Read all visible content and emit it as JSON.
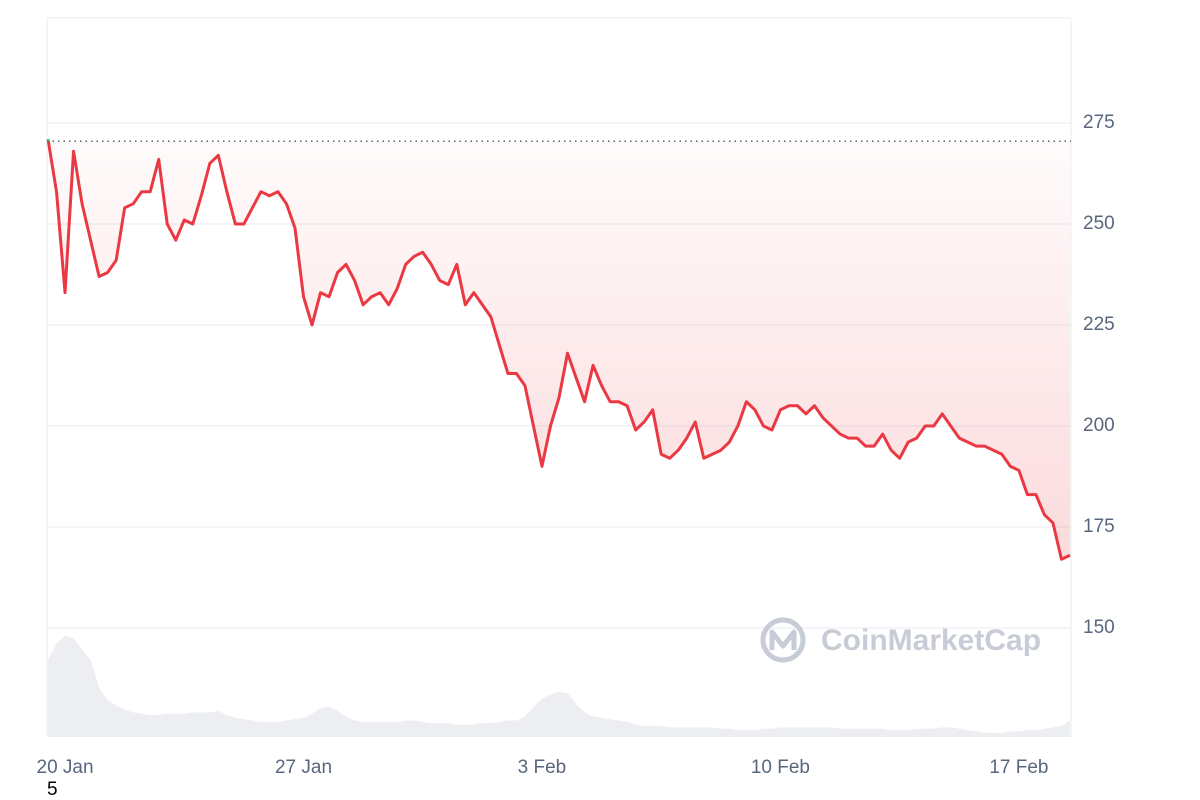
{
  "chart_data": {
    "type": "line",
    "categories": [
      null,
      null,
      "20 Jan",
      null,
      null,
      null,
      null,
      null,
      null,
      null,
      null,
      null,
      null,
      null,
      null,
      null,
      null,
      null,
      null,
      null,
      null,
      null,
      null,
      null,
      null,
      null,
      null,
      null,
      null,
      null,
      "27 Jan",
      null,
      null,
      null,
      null,
      null,
      null,
      null,
      null,
      null,
      null,
      null,
      null,
      null,
      null,
      null,
      null,
      null,
      null,
      null,
      null,
      null,
      null,
      null,
      null,
      null,
      null,
      null,
      "3 Feb",
      null,
      null,
      null,
      null,
      null,
      null,
      null,
      null,
      null,
      null,
      null,
      null,
      null,
      null,
      null,
      null,
      null,
      null,
      null,
      null,
      null,
      null,
      null,
      null,
      null,
      null,
      null,
      "10 Feb",
      null,
      null,
      null,
      null,
      null,
      null,
      null,
      null,
      null,
      null,
      null,
      null,
      null,
      null,
      null,
      null,
      null,
      null,
      null,
      null,
      null,
      null,
      null,
      null,
      null,
      null,
      null,
      "17 Feb",
      null,
      null,
      null,
      null,
      null,
      null
    ],
    "values": [
      271,
      258,
      233,
      268,
      255,
      246,
      237,
      238,
      241,
      254,
      255,
      258,
      258,
      266,
      250,
      246,
      251,
      250,
      257,
      265,
      267,
      258,
      250,
      250,
      254,
      258,
      257,
      258,
      255,
      249,
      232,
      225,
      233,
      232,
      238,
      240,
      236,
      230,
      232,
      233,
      230,
      234,
      240,
      242,
      243,
      240,
      236,
      235,
      240,
      230,
      233,
      230,
      227,
      220,
      213,
      213,
      210,
      200,
      190,
      200,
      207,
      218,
      212,
      206,
      215,
      210,
      206,
      206,
      205,
      199,
      201,
      204,
      193,
      192,
      194,
      197,
      201,
      192,
      193,
      194,
      196,
      200,
      206,
      204,
      200,
      199,
      204,
      205,
      205,
      203,
      205,
      202,
      200,
      198,
      197,
      197,
      195,
      195,
      198,
      194,
      192,
      196,
      197,
      200,
      200,
      203,
      200,
      197,
      196,
      195,
      195,
      194,
      193,
      190,
      189,
      183,
      183,
      178,
      176,
      167,
      168
    ],
    "color": "#ea3943",
    "up_color": "#16c784",
    "reference_line": 270.5,
    "ylim": [
      123,
      301
    ],
    "yticks": [
      150,
      175,
      200,
      225,
      250,
      275
    ],
    "grid": true,
    "volume": {
      "color": "#eceef2",
      "ylim": [
        0,
        100
      ],
      "values": [
        56,
        68,
        74,
        72,
        64,
        56,
        36,
        27,
        23,
        20,
        18,
        17,
        16,
        16,
        17,
        17,
        17,
        18,
        18,
        18,
        19,
        16,
        14,
        13,
        12,
        11,
        11,
        11,
        12,
        13,
        14,
        17,
        21,
        22,
        19,
        15,
        12,
        11,
        11,
        11,
        11,
        11,
        12,
        12,
        11,
        10,
        10,
        10,
        9,
        9,
        9,
        10,
        10,
        11,
        12,
        12,
        15,
        22,
        28,
        31,
        33,
        32,
        24,
        18,
        15,
        14,
        13,
        12,
        11,
        9,
        8,
        8,
        8,
        7,
        7,
        7,
        7,
        7,
        7,
        6,
        6,
        5,
        5,
        5,
        6,
        6,
        7,
        7,
        7,
        7,
        7,
        7,
        7,
        6,
        6,
        6,
        6,
        6,
        6,
        5,
        5,
        5,
        6,
        6,
        6,
        7,
        7,
        6,
        5,
        4,
        3,
        3,
        3,
        4,
        4,
        5,
        5,
        6,
        7,
        8,
        12
      ]
    },
    "watermark": "CoinMarketCap",
    "footnote": "5"
  }
}
